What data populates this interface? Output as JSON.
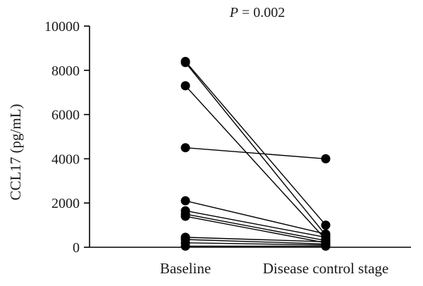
{
  "chart_data": {
    "type": "scatter",
    "variant": "paired-before-after",
    "title": "",
    "annotation": {
      "p_symbol": "P",
      "p_equals": " = 0.002"
    },
    "ylabel": "CCL17 (pg/mL)",
    "xlabel": "",
    "categories": [
      "Baseline",
      "Disease control stage"
    ],
    "ylim": [
      0,
      10000
    ],
    "yticks": [
      0,
      2000,
      4000,
      6000,
      8000,
      10000
    ],
    "ytick_labels": [
      "0",
      "2000",
      "4000",
      "6000",
      "8000",
      "10000"
    ],
    "grid": false,
    "legend": "none",
    "marker_color": "#000000",
    "line_color": "#000000",
    "pairs": [
      {
        "baseline": 8400,
        "disease_control": 1000
      },
      {
        "baseline": 8350,
        "disease_control": 550
      },
      {
        "baseline": 7300,
        "disease_control": 350
      },
      {
        "baseline": 4500,
        "disease_control": 4000
      },
      {
        "baseline": 2100,
        "disease_control": 600
      },
      {
        "baseline": 1650,
        "disease_control": 450
      },
      {
        "baseline": 1500,
        "disease_control": 300
      },
      {
        "baseline": 1400,
        "disease_control": 200
      },
      {
        "baseline": 450,
        "disease_control": 250
      },
      {
        "baseline": 350,
        "disease_control": 150
      },
      {
        "baseline": 200,
        "disease_control": 100
      },
      {
        "baseline": 50,
        "disease_control": 50
      }
    ]
  }
}
